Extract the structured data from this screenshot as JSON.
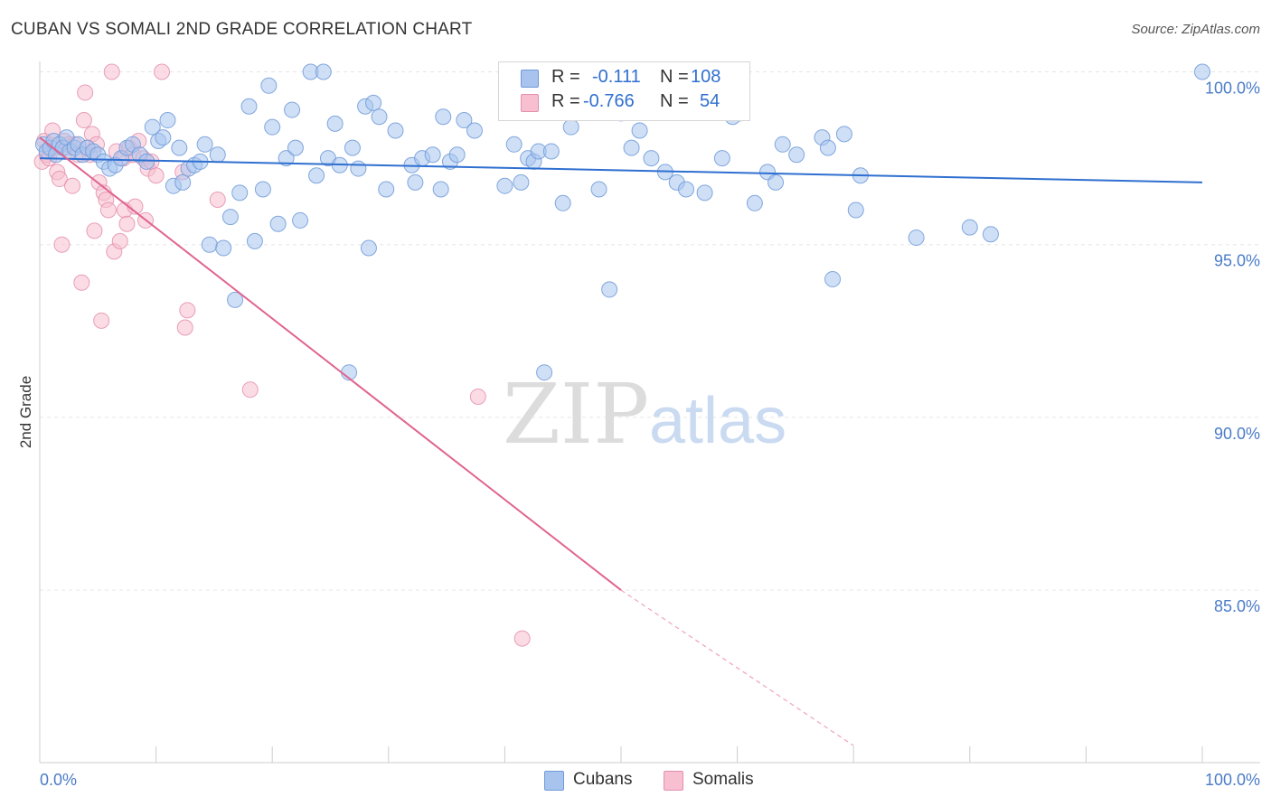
{
  "title": "CUBAN VS SOMALI 2ND GRADE CORRELATION CHART",
  "source": "Source: ZipAtlas.com",
  "watermark": {
    "zip": "ZIP",
    "atlas": "atlas"
  },
  "legend": {
    "rows": [
      {
        "r_label": "R =",
        "r_value": "-0.111",
        "n_label": "N =",
        "n_value": "108",
        "color": "#a8c4ee",
        "border": "#6f9ad8"
      },
      {
        "r_label": "R =",
        "r_value": "-0.766",
        "n_label": "N =",
        "n_value": "54",
        "color": "#f7bfd0",
        "border": "#e48fae"
      }
    ]
  },
  "bottom_legend": [
    {
      "label": "Cubans",
      "color": "#a8c4ee",
      "border": "#6f9ad8"
    },
    {
      "label": "Somalis",
      "color": "#f7bfd0",
      "border": "#e48fae"
    }
  ],
  "chart_data": {
    "type": "scatter",
    "title": "CUBAN VS SOMALI 2ND GRADE CORRELATION CHART",
    "xlabel": "",
    "ylabel": "2nd Grade",
    "xlim": [
      0,
      100
    ],
    "ylim": [
      80.5,
      100.9
    ],
    "x_tick_labels": [
      "0.0%",
      "100.0%"
    ],
    "y_ticks": [
      85,
      90,
      95,
      100
    ],
    "y_tick_labels": [
      "85.0%",
      "90.0%",
      "95.0%",
      "100.0%"
    ],
    "grid": true,
    "series": [
      {
        "name": "Cubans",
        "color": "#6f9ad8",
        "fill": "#a8c4ee",
        "trend": {
          "x": [
            0,
            100
          ],
          "y": [
            97.5,
            96.8
          ],
          "color": "#2f6fd0"
        },
        "points": [
          [
            0.3,
            97.9
          ],
          [
            0.6,
            97.7
          ],
          [
            0.9,
            97.8
          ],
          [
            1.2,
            98.0
          ],
          [
            1.4,
            97.6
          ],
          [
            1.7,
            97.9
          ],
          [
            2.0,
            97.8
          ],
          [
            2.3,
            98.1
          ],
          [
            2.6,
            97.7
          ],
          [
            3.0,
            97.8
          ],
          [
            3.3,
            97.9
          ],
          [
            3.7,
            97.6
          ],
          [
            4.1,
            97.8
          ],
          [
            4.6,
            97.7
          ],
          [
            5.0,
            97.6
          ],
          [
            5.5,
            97.4
          ],
          [
            6.0,
            97.2
          ],
          [
            6.5,
            97.3
          ],
          [
            7.0,
            97.5
          ],
          [
            7.5,
            97.8
          ],
          [
            8.0,
            97.9
          ],
          [
            8.6,
            97.6
          ],
          [
            9.2,
            97.4
          ],
          [
            9.7,
            98.4
          ],
          [
            10.2,
            98.0
          ],
          [
            10.6,
            98.1
          ],
          [
            11.0,
            98.6
          ],
          [
            11.5,
            96.7
          ],
          [
            12.0,
            97.8
          ],
          [
            12.3,
            96.8
          ],
          [
            12.8,
            97.2
          ],
          [
            13.3,
            97.3
          ],
          [
            13.8,
            97.4
          ],
          [
            14.2,
            97.9
          ],
          [
            14.6,
            95.0
          ],
          [
            15.3,
            97.6
          ],
          [
            15.8,
            94.9
          ],
          [
            16.4,
            95.8
          ],
          [
            16.8,
            93.4
          ],
          [
            17.2,
            96.5
          ],
          [
            18.0,
            99.0
          ],
          [
            18.5,
            95.1
          ],
          [
            19.2,
            96.6
          ],
          [
            19.7,
            99.6
          ],
          [
            20.0,
            98.4
          ],
          [
            20.5,
            95.6
          ],
          [
            21.2,
            97.5
          ],
          [
            21.7,
            98.9
          ],
          [
            22.0,
            97.8
          ],
          [
            22.4,
            95.7
          ],
          [
            23.3,
            100.0
          ],
          [
            23.8,
            97.0
          ],
          [
            24.4,
            100.0
          ],
          [
            24.8,
            97.5
          ],
          [
            25.4,
            98.5
          ],
          [
            25.8,
            97.3
          ],
          [
            26.6,
            91.3
          ],
          [
            26.9,
            97.8
          ],
          [
            27.4,
            97.2
          ],
          [
            28.0,
            99.0
          ],
          [
            28.3,
            94.9
          ],
          [
            28.7,
            99.1
          ],
          [
            29.2,
            98.7
          ],
          [
            29.8,
            96.6
          ],
          [
            30.6,
            98.3
          ],
          [
            32.0,
            97.3
          ],
          [
            32.3,
            96.8
          ],
          [
            32.9,
            97.5
          ],
          [
            33.8,
            97.6
          ],
          [
            34.5,
            96.6
          ],
          [
            34.7,
            98.7
          ],
          [
            35.3,
            97.4
          ],
          [
            35.9,
            97.6
          ],
          [
            36.5,
            98.6
          ],
          [
            37.4,
            98.3
          ],
          [
            40.0,
            96.7
          ],
          [
            40.8,
            97.9
          ],
          [
            41.4,
            96.8
          ],
          [
            42.0,
            97.5
          ],
          [
            42.5,
            97.4
          ],
          [
            42.9,
            97.7
          ],
          [
            43.4,
            91.3
          ],
          [
            44.0,
            97.7
          ],
          [
            45.0,
            96.2
          ],
          [
            45.7,
            98.4
          ],
          [
            48.1,
            96.6
          ],
          [
            49.0,
            93.7
          ],
          [
            50.0,
            98.8
          ],
          [
            50.9,
            97.8
          ],
          [
            51.6,
            98.3
          ],
          [
            52.6,
            97.5
          ],
          [
            53.8,
            97.1
          ],
          [
            54.8,
            96.8
          ],
          [
            55.6,
            96.6
          ],
          [
            57.2,
            96.5
          ],
          [
            58.7,
            97.5
          ],
          [
            59.6,
            98.7
          ],
          [
            60.2,
            98.8
          ],
          [
            61.5,
            96.2
          ],
          [
            62.6,
            97.1
          ],
          [
            63.3,
            96.8
          ],
          [
            63.9,
            97.9
          ],
          [
            65.1,
            97.6
          ],
          [
            67.3,
            98.1
          ],
          [
            67.8,
            97.8
          ],
          [
            68.2,
            94.0
          ],
          [
            69.2,
            98.2
          ],
          [
            70.2,
            96.0
          ],
          [
            70.6,
            97.0
          ],
          [
            75.4,
            95.2
          ],
          [
            80.0,
            95.5
          ],
          [
            81.8,
            95.3
          ],
          [
            100.0,
            100.0
          ]
        ]
      },
      {
        "name": "Somalis",
        "color": "#e48fae",
        "fill": "#f7bfd0",
        "trend": {
          "x": [
            0,
            50
          ],
          "y": [
            98.1,
            85.0
          ],
          "dashed_to": {
            "x": 70,
            "y": 80.5
          },
          "color": "#e0648f"
        },
        "points": [
          [
            0.2,
            97.4
          ],
          [
            0.4,
            98.0
          ],
          [
            0.6,
            97.6
          ],
          [
            0.8,
            97.5
          ],
          [
            1.1,
            98.3
          ],
          [
            1.3,
            97.8
          ],
          [
            1.5,
            97.1
          ],
          [
            1.7,
            96.9
          ],
          [
            1.9,
            95.0
          ],
          [
            2.1,
            98.0
          ],
          [
            2.3,
            97.8
          ],
          [
            2.5,
            97.9
          ],
          [
            2.8,
            96.7
          ],
          [
            3.0,
            97.9
          ],
          [
            3.3,
            97.6
          ],
          [
            3.6,
            93.9
          ],
          [
            3.8,
            98.6
          ],
          [
            3.9,
            99.4
          ],
          [
            4.1,
            97.8
          ],
          [
            4.3,
            97.6
          ],
          [
            4.5,
            98.2
          ],
          [
            4.7,
            95.4
          ],
          [
            4.9,
            97.9
          ],
          [
            5.1,
            96.8
          ],
          [
            5.3,
            92.8
          ],
          [
            5.5,
            96.5
          ],
          [
            5.7,
            96.3
          ],
          [
            5.9,
            96.0
          ],
          [
            6.2,
            100.0
          ],
          [
            6.4,
            94.8
          ],
          [
            6.6,
            97.7
          ],
          [
            6.9,
            95.1
          ],
          [
            7.2,
            97.5
          ],
          [
            7.3,
            96.0
          ],
          [
            7.5,
            95.6
          ],
          [
            7.7,
            97.8
          ],
          [
            8.0,
            97.6
          ],
          [
            8.2,
            96.1
          ],
          [
            8.5,
            98.0
          ],
          [
            8.9,
            97.5
          ],
          [
            9.1,
            95.7
          ],
          [
            9.3,
            97.2
          ],
          [
            9.6,
            97.4
          ],
          [
            10.0,
            97.0
          ],
          [
            10.5,
            100.0
          ],
          [
            12.3,
            97.1
          ],
          [
            12.5,
            92.6
          ],
          [
            12.7,
            93.1
          ],
          [
            15.3,
            96.3
          ],
          [
            18.1,
            90.8
          ],
          [
            37.7,
            90.6
          ],
          [
            41.5,
            83.6
          ]
        ]
      }
    ]
  }
}
